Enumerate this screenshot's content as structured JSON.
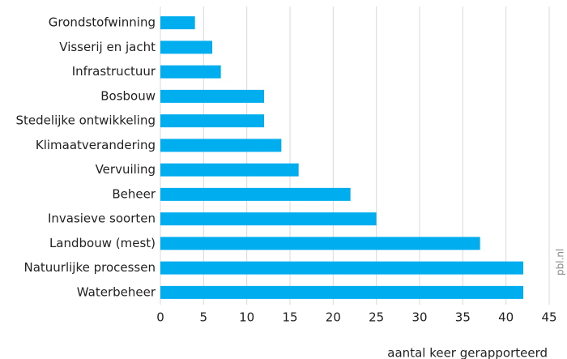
{
  "chart_data": {
    "type": "barh",
    "categories": [
      "Grondstofwinning",
      "Visserij en jacht",
      "Infrastructuur",
      "Bosbouw",
      "Stedelijke ontwikkeling",
      "Klimaatverandering",
      "Vervuiling",
      "Beheer",
      "Invasieve soorten",
      "Landbouw (mest)",
      "Natuurlijke processen",
      "Waterbeheer"
    ],
    "values": [
      4,
      6,
      7,
      12,
      12,
      14,
      16,
      22,
      25,
      37,
      42,
      42
    ],
    "color": "#00aeef",
    "xlabel": "aantal keer gerapporteerd",
    "source": "pbl.nl",
    "xlim": [
      0,
      45
    ],
    "xticks": [
      0,
      5,
      10,
      15,
      20,
      25,
      30,
      35,
      40,
      45
    ],
    "grid": true
  }
}
